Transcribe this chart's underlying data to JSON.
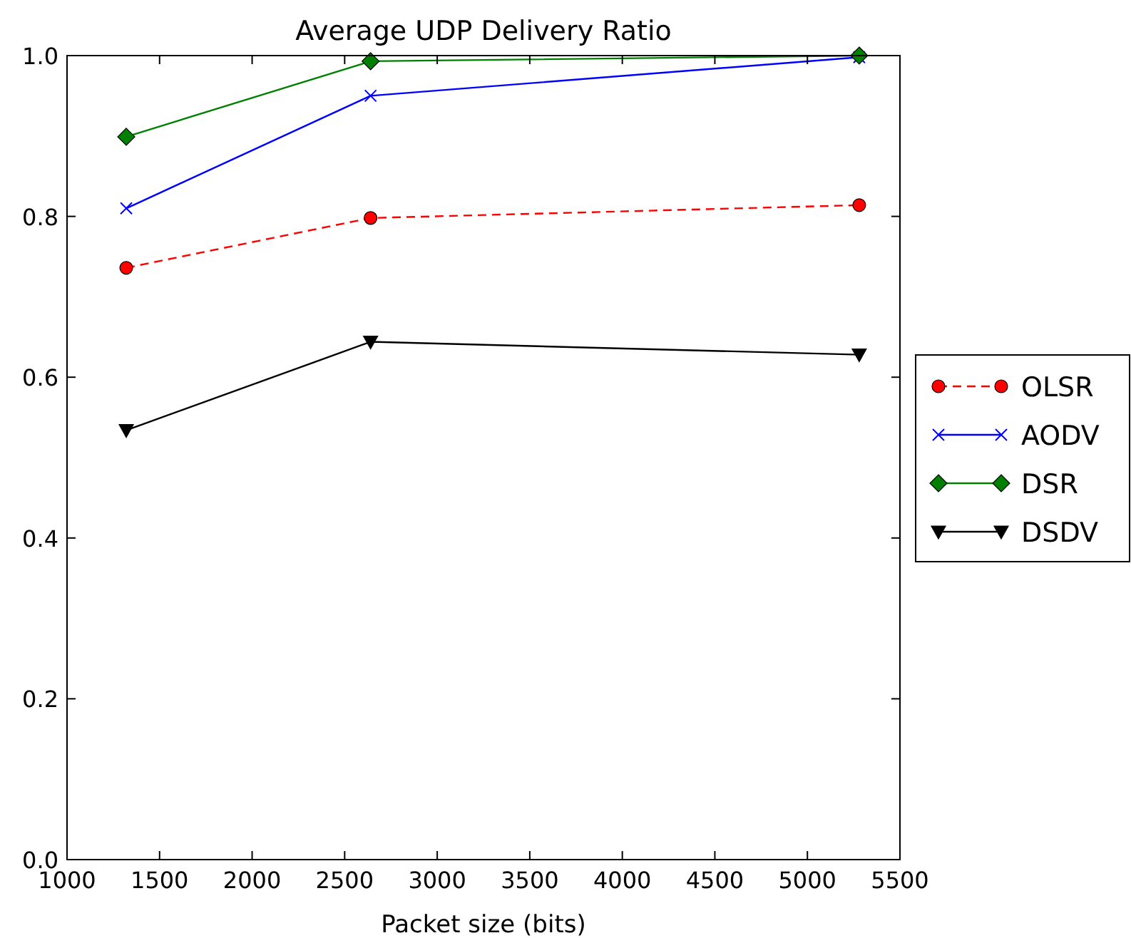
{
  "chart_data": {
    "type": "line",
    "title": "Average UDP Delivery Ratio",
    "xlabel": "Packet size (bits)",
    "x": [
      1320,
      2640,
      5280
    ],
    "xlim": [
      1000,
      5500
    ],
    "xticks": [
      1000,
      1500,
      2000,
      2500,
      3000,
      3500,
      4000,
      4500,
      5000,
      5500
    ],
    "ylim": [
      0,
      1
    ],
    "yticks": [
      {
        "value": 0,
        "label": "0.0"
      },
      {
        "value": 0.2,
        "label": "0.2"
      },
      {
        "value": 0.4,
        "label": "0.4"
      },
      {
        "value": 0.6,
        "label": "0.6"
      },
      {
        "value": 0.8,
        "label": "0.8"
      },
      {
        "value": 1,
        "label": "1.0"
      }
    ],
    "grid": false,
    "legend": "right",
    "series": [
      {
        "name": "OLSR",
        "color": "#ff0000",
        "marker": "circle",
        "line_style": "dashed",
        "values": [
          0.736,
          0.798,
          0.814
        ]
      },
      {
        "name": "AODV",
        "color": "#0000ff",
        "marker": "cross",
        "line_style": "solid",
        "values": [
          0.81,
          0.95,
          0.998
        ]
      },
      {
        "name": "DSR",
        "color": "#008000",
        "marker": "diamond",
        "line_style": "solid",
        "values": [
          0.899,
          0.993,
          1.0
        ]
      },
      {
        "name": "DSDV",
        "color": "#000000",
        "marker": "triangle",
        "line_style": "solid",
        "values": [
          0.534,
          0.644,
          0.628
        ]
      }
    ]
  }
}
